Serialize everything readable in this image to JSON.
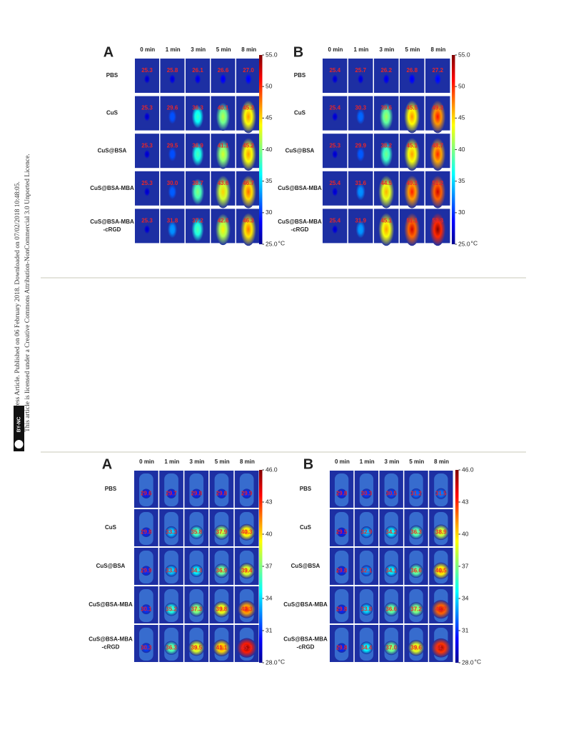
{
  "sidebar": {
    "line1": "Open Access Article. Published on 06 February 2018. Downloaded on 07/02/2018 10:48:05.",
    "line2": "This article is licensed under a Creative Commons Attribution-NonCommercial 3.0 Unported Licence.",
    "badge": "BY-NC"
  },
  "figures": [
    {
      "colorbar": {
        "lim": [
          25,
          55
        ],
        "ticks": [
          {
            "value": 55,
            "label": "55.0"
          },
          50,
          45,
          40,
          35,
          30,
          {
            "value": 25,
            "label": "25.0"
          }
        ],
        "unit": "°C"
      },
      "panels": [
        {
          "label": "A",
          "times": [
            "0 min",
            "1 min",
            "3 min",
            "5 min",
            "8 min"
          ],
          "rows": [
            {
              "name": [
                "PBS"
              ],
              "values": [
                "25.3",
                "25.8",
                "26.1",
                "26.6",
                "27.0"
              ]
            },
            {
              "name": [
                "CuS"
              ],
              "values": [
                "25.3",
                "29.6",
                "36.3",
                "40.1",
                "45.3"
              ]
            },
            {
              "name": [
                "CuS@BSA"
              ],
              "values": [
                "25.3",
                "29.5",
                "36.9",
                "41.1",
                "45.2"
              ]
            },
            {
              "name": [
                "CuS@BSA-MBA"
              ],
              "values": [
                "25.3",
                "30.0",
                "38.7",
                "43.6",
                "46.7"
              ]
            },
            {
              "name": [
                "CuS@BSA-MBA",
                "-cRGD"
              ],
              "values": [
                "25.3",
                "31.8",
                "37.2",
                "42.6",
                "46.3"
              ]
            }
          ]
        },
        {
          "label": "B",
          "times": [
            "0 min",
            "1 min",
            "3 min",
            "5 min",
            "8 min"
          ],
          "rows": [
            {
              "name": [
                "PBS"
              ],
              "values": [
                "25.4",
                "25.7",
                "26.2",
                "26.8",
                "27.2"
              ]
            },
            {
              "name": [
                "CuS"
              ],
              "values": [
                "25.4",
                "30.3",
                "39.6",
                "45.5",
                "49.3"
              ]
            },
            {
              "name": [
                "CuS@BSA"
              ],
              "values": [
                "25.3",
                "29.9",
                "38.2",
                "45.1",
                "48.7"
              ]
            },
            {
              "name": [
                "CuS@BSA-MBA"
              ],
              "values": [
                "25.4",
                "31.6",
                "44.5",
                "49.1",
                "51.2"
              ]
            },
            {
              "name": [
                "CuS@BSA-MBA",
                "-cRGD"
              ],
              "values": [
                "25.4",
                "31.9",
                "45.1",
                "51.1",
                "53.3"
              ]
            }
          ]
        }
      ]
    },
    {
      "colorbar": {
        "lim": [
          28,
          46
        ],
        "ticks": [
          {
            "value": 46,
            "label": "46.0"
          },
          43,
          40,
          37,
          34,
          31,
          {
            "value": 28,
            "label": "28.0"
          }
        ],
        "unit": "°C"
      },
      "panels": [
        {
          "label": "A",
          "times": [
            "0 min",
            "1 min",
            "3 min",
            "5 min",
            "8 min"
          ],
          "rows": [
            {
              "name": [
                "PBS"
              ],
              "values": [
                "29.6",
                "29.7",
                "29.8",
                "29.8",
                "29.9"
              ]
            },
            {
              "name": [
                "CuS"
              ],
              "values": [
                "29.8",
                "33.3",
                "35.8",
                "37.9",
                "40.3"
              ]
            },
            {
              "name": [
                "CuS@BSA"
              ],
              "values": [
                "29.9",
                "33.4",
                "34.3",
                "36.9",
                "39.4"
              ]
            },
            {
              "name": [
                "CuS@BSA-MBA"
              ],
              "values": [
                "30.1",
                "35.2",
                "37.3",
                "39.8",
                "42.3"
              ]
            },
            {
              "name": [
                "CuS@BSA-MBA",
                "-cRGD"
              ],
              "values": [
                "30.3",
                "36.3",
                "39.5",
                "41.1",
                "45.3"
              ]
            }
          ]
        },
        {
          "label": "B",
          "times": [
            "0 min",
            "1 min",
            "3 min",
            "5 min",
            "8 min"
          ],
          "rows": [
            {
              "name": [
                "PBS"
              ],
              "values": [
                "29.8",
                "30.3",
                "30.5",
                "31.2",
                "31.5"
              ]
            },
            {
              "name": [
                "CuS"
              ],
              "values": [
                "29.5",
                "32.9",
                "34.2",
                "36.3",
                "38.9"
              ]
            },
            {
              "name": [
                "CuS@BSA"
              ],
              "values": [
                "29.8",
                "32.1",
                "34.1",
                "36.6",
                "40.5"
              ]
            },
            {
              "name": [
                "CuS@BSA-MBA"
              ],
              "values": [
                "29.8",
                "33.8",
                "36.6",
                "37.2",
                "43.7"
              ]
            },
            {
              "name": [
                "CuS@BSA-MBA",
                "-cRGD"
              ],
              "values": [
                "29.8",
                "34.4",
                "37.0",
                "39.6",
                "44.7"
              ]
            }
          ]
        }
      ]
    }
  ]
}
